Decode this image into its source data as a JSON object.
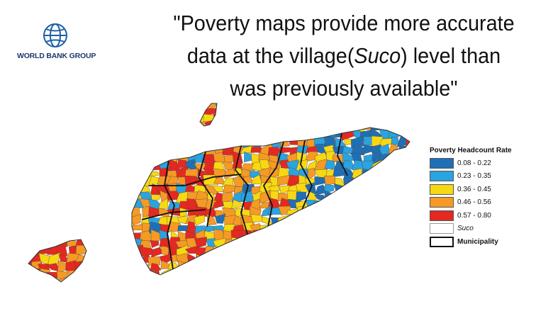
{
  "logo": {
    "text": "WORLD BANK GROUP"
  },
  "quote": {
    "line1": "\"Poverty maps provide more accurate",
    "line2_start": "data at the village(",
    "line2_italic": "Suco",
    "line2_end": ") level than",
    "line3": "was previously available\""
  },
  "legend": {
    "title": "Poverty Headcount Rate",
    "items": [
      {
        "label": "0.08 - 0.22",
        "color": "#1f6fb5"
      },
      {
        "label": "0.23 - 0.35",
        "color": "#2aa3e0"
      },
      {
        "label": "0.36 - 0.45",
        "color": "#f7d814"
      },
      {
        "label": "0.46 - 0.56",
        "color": "#f59a25"
      },
      {
        "label": "0.57 - 0.80",
        "color": "#e42822"
      }
    ],
    "boundaries": [
      {
        "label": "Suco",
        "italic": true,
        "border": "#999"
      },
      {
        "label": "Municipality",
        "italic": false,
        "border": "#111"
      }
    ]
  }
}
